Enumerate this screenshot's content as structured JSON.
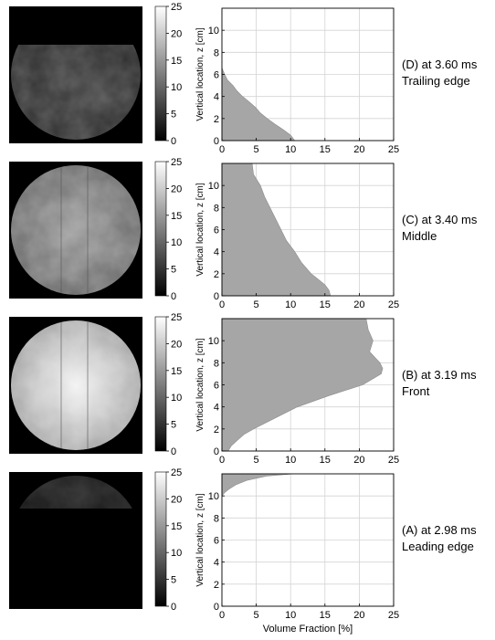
{
  "colorbar_ticks": [
    "25",
    "20",
    "15",
    "10",
    "5",
    "0"
  ],
  "xlabel": "Volume Fraction [%]",
  "ylabel": "Vertical location, z [cm]",
  "chart_data": [
    {
      "type": "area",
      "caption_line1": "(D) at 3.60 ms",
      "caption_line2": "Trailing edge",
      "brightness": 0.25,
      "cap_fraction": 0.72,
      "xlim": [
        0,
        25
      ],
      "ylim": [
        0,
        12
      ],
      "xticks": [
        "0",
        "5",
        "10",
        "15",
        "20",
        "25"
      ],
      "yticks": [
        "0",
        "2",
        "4",
        "6",
        "8",
        "10"
      ],
      "y": [
        0,
        0.5,
        1,
        1.5,
        2,
        2.5,
        3,
        3.5,
        4,
        4.5,
        5,
        5.5,
        6,
        6.3,
        6.6
      ],
      "x": [
        10.6,
        10.0,
        8.9,
        7.7,
        6.6,
        5.6,
        4.9,
        4.0,
        3.0,
        2.2,
        1.6,
        0.8,
        0.4,
        0.2,
        0.0
      ]
    },
    {
      "type": "area",
      "caption_line1": "(C) at 3.40 ms",
      "caption_line2": "Middle",
      "brightness": 0.6,
      "cap_fraction": 0,
      "xlim": [
        0,
        25
      ],
      "ylim": [
        0,
        12
      ],
      "xticks": [
        "0",
        "5",
        "10",
        "15",
        "20",
        "25"
      ],
      "yticks": [
        "0",
        "2",
        "4",
        "6",
        "8",
        "10"
      ],
      "y": [
        0,
        0.5,
        1,
        1.5,
        2,
        3,
        4,
        5,
        6,
        7,
        8,
        9,
        10,
        11,
        12
      ],
      "x": [
        15.8,
        15.6,
        15.0,
        14.0,
        13.0,
        11.6,
        10.6,
        9.4,
        8.6,
        7.8,
        7.0,
        6.2,
        5.6,
        4.6,
        4.4
      ]
    },
    {
      "type": "area",
      "caption_line1": "(B) at 3.19 ms",
      "caption_line2": "Front",
      "brightness": 0.95,
      "cap_fraction": 0,
      "xlim": [
        0,
        25
      ],
      "ylim": [
        0,
        12
      ],
      "xticks": [
        "0",
        "5",
        "10",
        "15",
        "20",
        "25"
      ],
      "yticks": [
        "0",
        "2",
        "4",
        "6",
        "8",
        "10"
      ],
      "y": [
        0,
        0.5,
        1,
        1.5,
        2,
        3,
        4,
        5,
        6,
        7,
        7.5,
        8,
        9,
        10,
        11,
        12
      ],
      "x": [
        0.9,
        1.4,
        2.3,
        3.2,
        4.6,
        7.8,
        11.0,
        15.5,
        20.5,
        23.2,
        23.4,
        23.0,
        21.5,
        22.0,
        21.3,
        21.0
      ]
    },
    {
      "type": "area",
      "caption_line1": "(A) at 2.98 ms",
      "caption_line2": "Leading edge",
      "brightness": 0.15,
      "cap_fraction": 0.35,
      "xlim": [
        0,
        25
      ],
      "ylim": [
        0,
        12
      ],
      "xticks": [
        "0",
        "5",
        "10",
        "15",
        "20",
        "25"
      ],
      "yticks": [
        "0",
        "2",
        "4",
        "6",
        "8",
        "10"
      ],
      "y": [
        10.0,
        10.3,
        10.6,
        11.0,
        11.4,
        11.8,
        12.0
      ],
      "x": [
        0.0,
        0.4,
        1.0,
        2.0,
        3.6,
        6.5,
        10.5
      ]
    }
  ]
}
